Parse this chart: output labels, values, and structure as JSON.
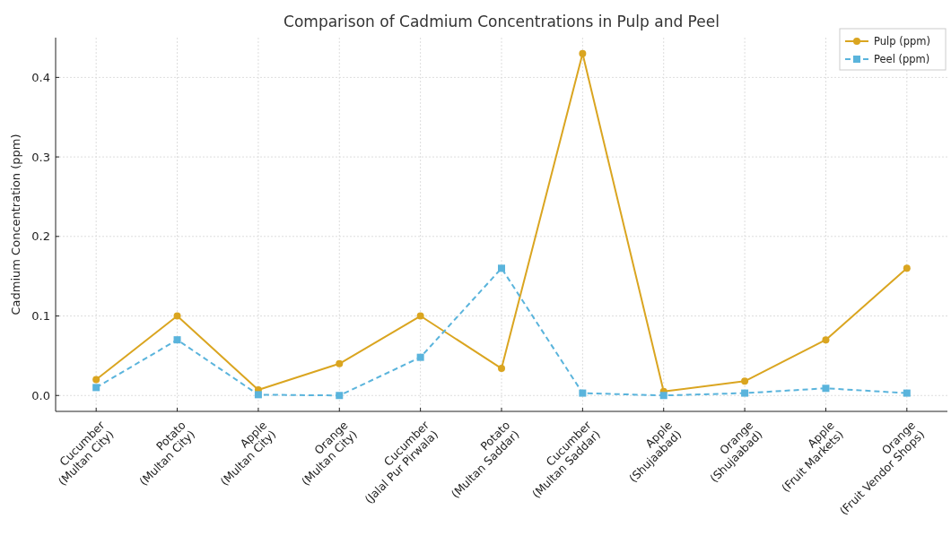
{
  "chart_data": {
    "type": "line",
    "title": "Comparison of Cadmium Concentrations in Pulp and Peel",
    "ylabel": "Cadmium Concentration (ppm)",
    "categories": [
      "Cucumber\n(Multan City)",
      "Potato\n(Multan City)",
      "Apple\n(Multan City)",
      "Orange\n(Multan City)",
      "Cucumber\n(Jalal Pur Pirwala)",
      "Potato\n(Multan Saddar)",
      "Cucumber\n(Multan Saddar)",
      "Apple\n(Shujaabad)",
      "Orange\n(Shujaabad)",
      "Apple\n(Fruit Markets)",
      "Orange\n(Fruit Vendor Shops)"
    ],
    "series": [
      {
        "name": "Pulp (ppm)",
        "color": "#daa520",
        "marker": "circle",
        "line_style": "solid",
        "values": [
          0.02,
          0.1,
          0.007,
          0.04,
          0.1,
          0.034,
          0.43,
          0.005,
          0.018,
          0.07,
          0.16
        ]
      },
      {
        "name": "Peel (ppm)",
        "color": "#5ab4dc",
        "marker": "square",
        "line_style": "dashed",
        "values": [
          0.01,
          0.07,
          0.001,
          0.0,
          0.048,
          0.16,
          0.003,
          0.0,
          0.003,
          0.009,
          0.003
        ]
      }
    ],
    "ylim": [
      -0.02,
      0.45
    ],
    "yticks": [
      {
        "value": 0,
        "label": "0.0"
      },
      0.1,
      0.2,
      0.3,
      0.4
    ],
    "grid": true,
    "legend": "top right"
  }
}
